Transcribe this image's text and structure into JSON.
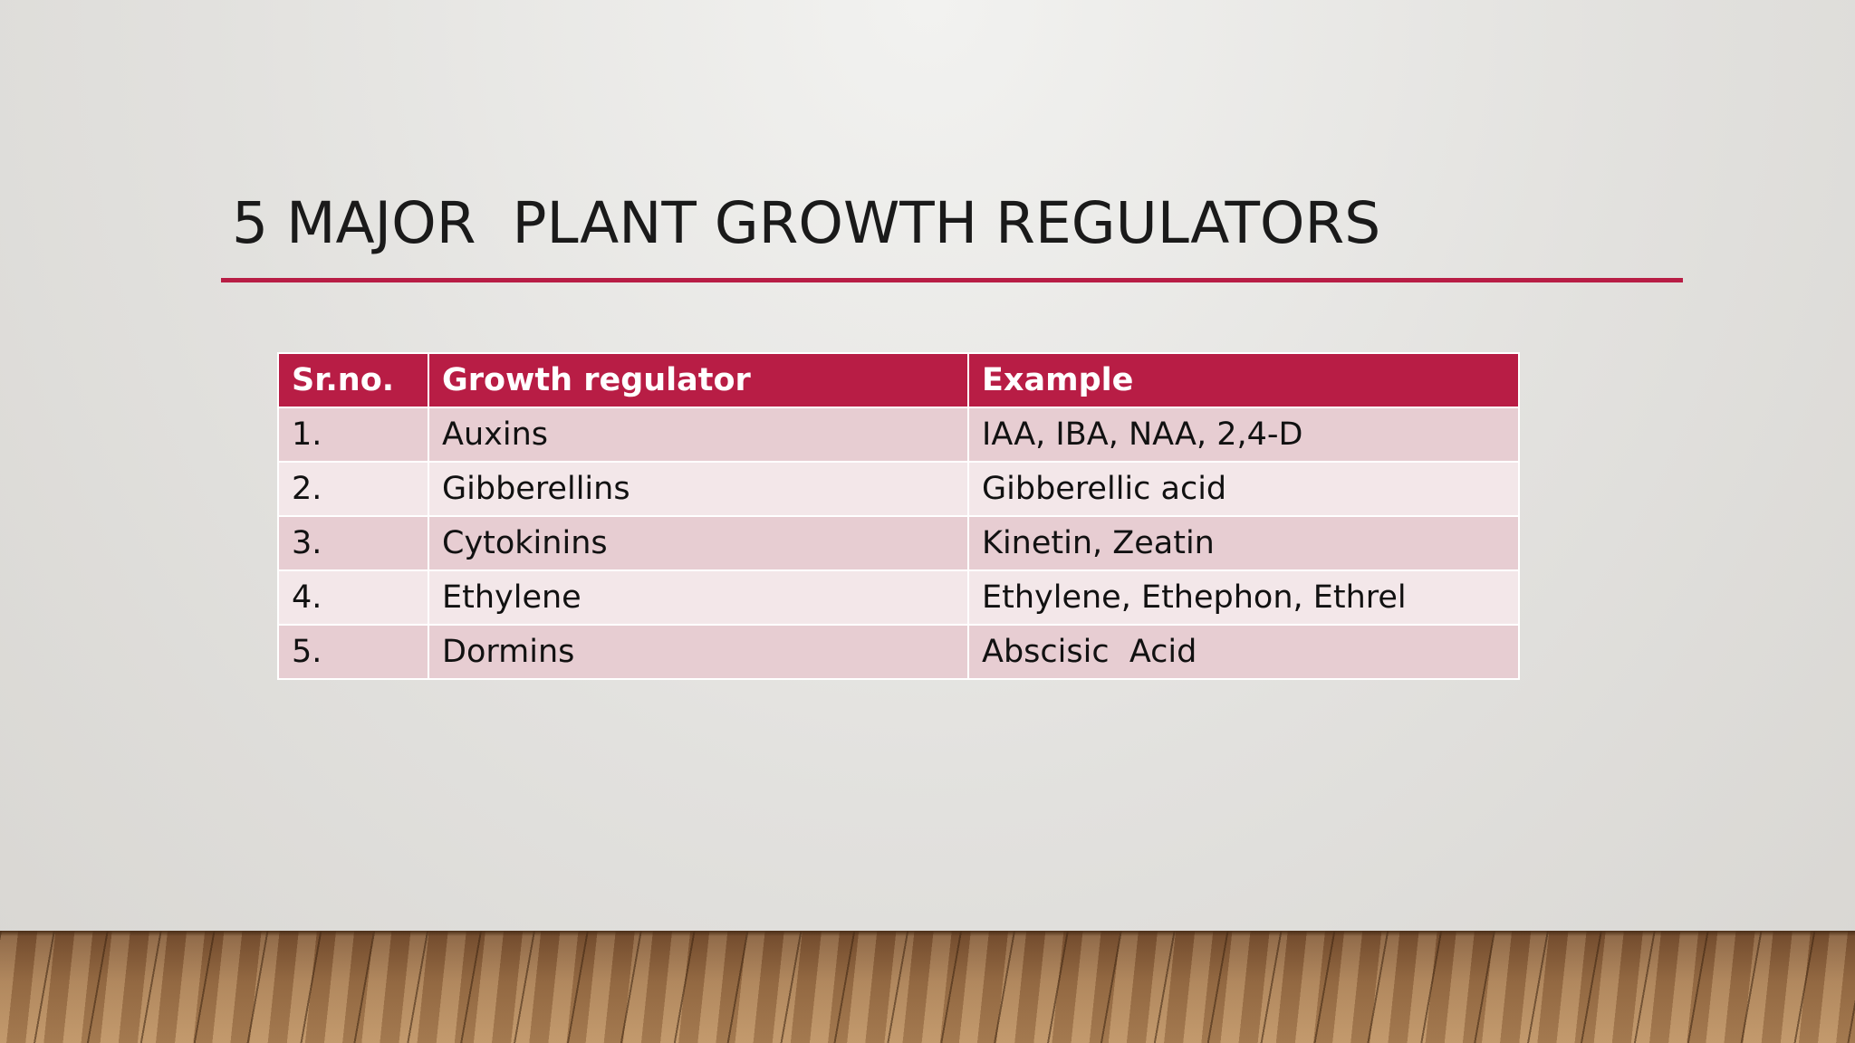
{
  "header": {
    "title": "5 MAJOR  PLANT GROWTH REGULATORS"
  },
  "table": {
    "columns": [
      "Sr.no.",
      "Growth regulator",
      "Example"
    ],
    "rows": [
      [
        "1.",
        "Auxins",
        "IAA, IBA, NAA, 2,4-D"
      ],
      [
        "2.",
        "Gibberellins",
        "Gibberellic acid"
      ],
      [
        "3.",
        "Cytokinins",
        "Kinetin, Zeatin"
      ],
      [
        "4.",
        "Ethylene",
        "Ethylene, Ethephon, Ethrel"
      ],
      [
        "5.",
        "Dormins",
        "Abscisic  Acid"
      ]
    ]
  }
}
